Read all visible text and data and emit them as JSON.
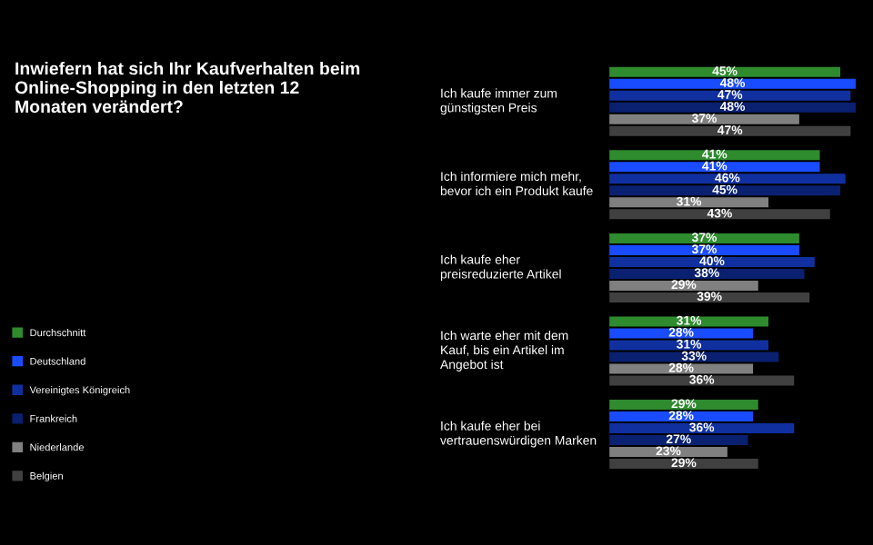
{
  "chart_data": {
    "type": "bar",
    "orientation": "horizontal",
    "title": "Inwiefern hat sich Ihr Kaufverhalten beim Online-Shopping in den letzten 12 Monaten verändert?",
    "categories": [
      "Ich kaufe immer zum günstigsten Preis",
      "Ich informiere mich mehr, bevor ich ein Produkt kaufe",
      "Ich kaufe eher preisreduzierte Artikel",
      "Ich warte eher mit dem Kauf, bis ein Artikel im Angebot ist",
      "Ich kaufe eher bei vertrauenswürdigen Marken"
    ],
    "series": [
      {
        "name": "Durchschnitt",
        "color": "#2e8b2e",
        "values": [
          45,
          41,
          37,
          31,
          29
        ],
        "value_labels": [
          "45%",
          "41%",
          "37%",
          "31%",
          "29%"
        ]
      },
      {
        "name": "Deutschland",
        "color": "#1a4cff",
        "values": [
          48,
          41,
          37,
          28,
          28
        ],
        "value_labels": [
          "48%",
          "41%",
          "37%",
          "28%",
          "28%"
        ]
      },
      {
        "name": "Vereinigtes Königreich",
        "color": "#1030a0",
        "values": [
          47,
          46,
          40,
          31,
          36
        ],
        "value_labels": [
          "47%",
          "46%",
          "40%",
          "31%",
          "36%"
        ]
      },
      {
        "name": "Frankreich",
        "color": "#0a2070",
        "values": [
          48,
          45,
          38,
          33,
          27
        ],
        "value_labels": [
          "48%",
          "45%",
          "38%",
          "33%",
          "27%"
        ]
      },
      {
        "name": "Niederlande",
        "color": "#808080",
        "values": [
          37,
          31,
          29,
          28,
          23
        ],
        "value_labels": [
          "37%",
          "31%",
          "29%",
          "28%",
          "23%"
        ]
      },
      {
        "name": "Belgien",
        "color": "#404040",
        "values": [
          47,
          43,
          39,
          36,
          29
        ],
        "value_labels": [
          "47%",
          "43%",
          "39%",
          "36%",
          "29%"
        ]
      }
    ],
    "legend": "left"
  }
}
